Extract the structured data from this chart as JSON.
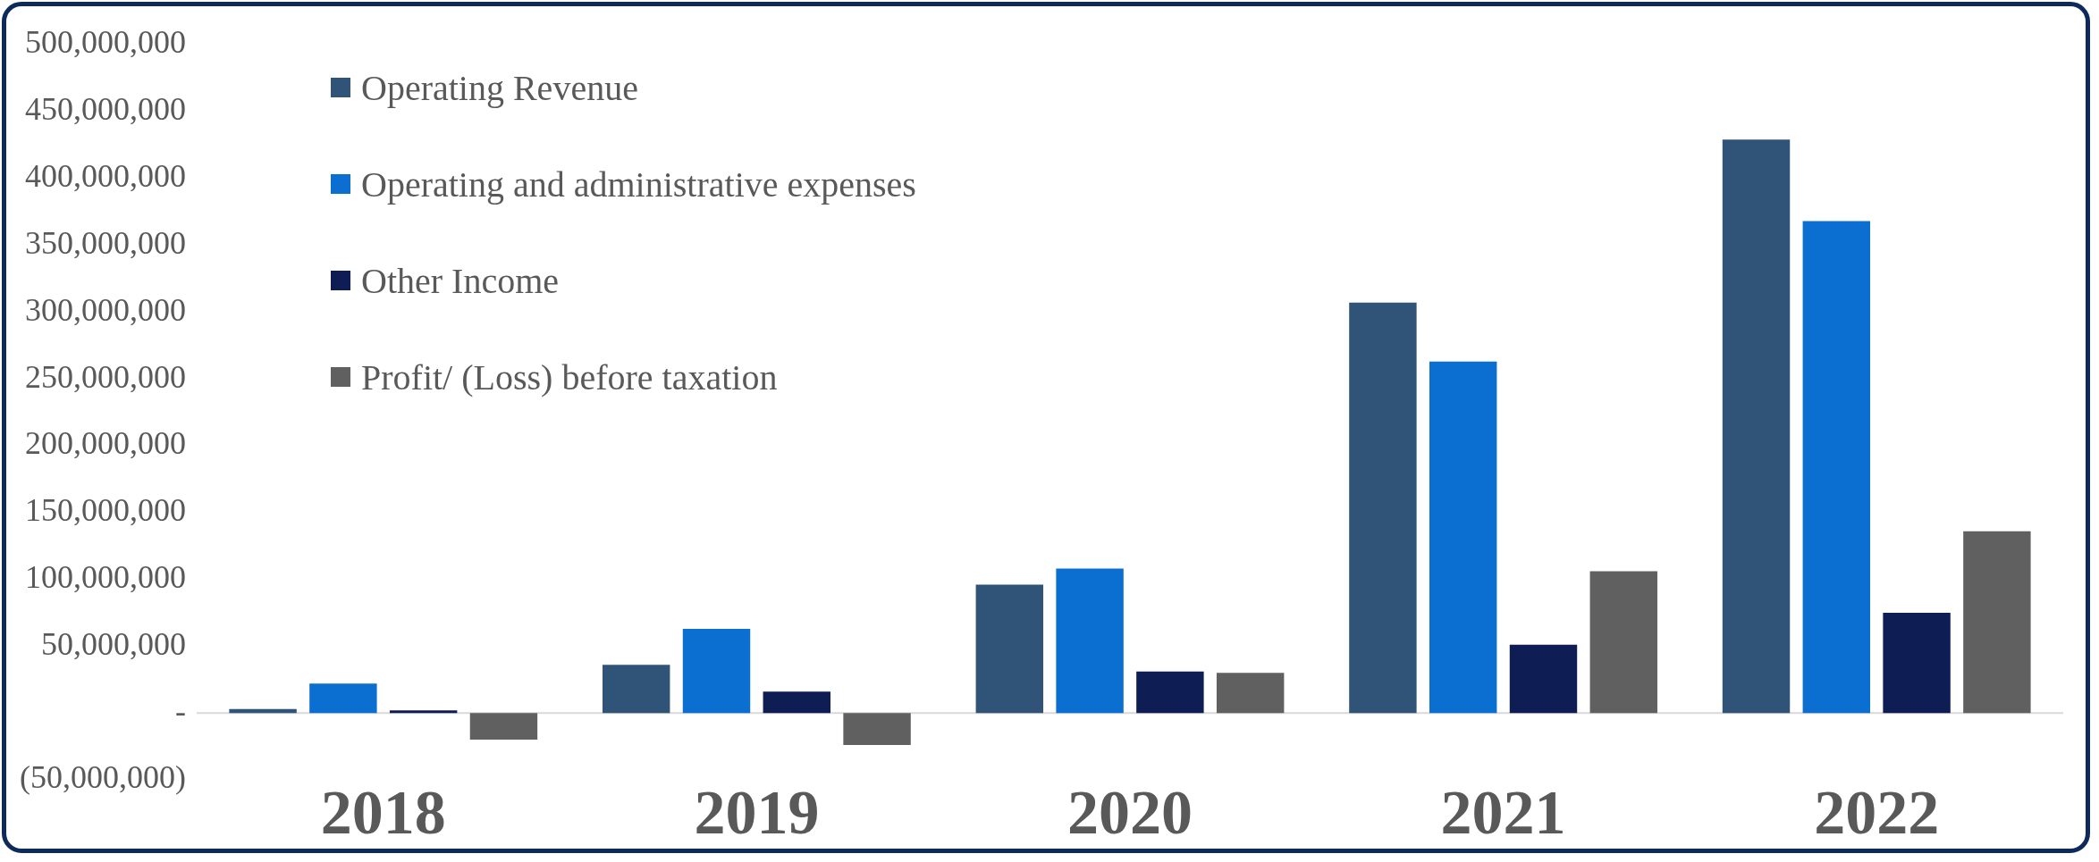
{
  "chart_data": {
    "type": "bar",
    "categories": [
      "2018",
      "2019",
      "2020",
      "2021",
      "2022"
    ],
    "series": [
      {
        "name": "Operating Revenue",
        "color": "#2f5478",
        "values": [
          3000000,
          36000000,
          96000000,
          307000000,
          429000000
        ]
      },
      {
        "name": "Operating and administrative expenses",
        "color": "#0b6fd2",
        "values": [
          22000000,
          63000000,
          108000000,
          263000000,
          368000000
        ]
      },
      {
        "name": "Other Income",
        "color": "#0f1d55",
        "values": [
          2000000,
          16000000,
          31000000,
          51000000,
          75000000
        ]
      },
      {
        "name": "Profit/ (Loss) before taxation",
        "color": "#606060",
        "values": [
          -20000000,
          -24000000,
          30000000,
          106000000,
          136000000
        ]
      }
    ],
    "ylim": [
      -50000000,
      500000000
    ],
    "yticks": [
      {
        "value": -50000000,
        "label": "(50,000,000)"
      },
      {
        "value": 0,
        "label": "-"
      },
      {
        "value": 50000000,
        "label": "50,000,000"
      },
      {
        "value": 100000000,
        "label": "100,000,000"
      },
      {
        "value": 150000000,
        "label": "150,000,000"
      },
      {
        "value": 200000000,
        "label": "200,000,000"
      },
      {
        "value": 250000000,
        "label": "250,000,000"
      },
      {
        "value": 300000000,
        "label": "300,000,000"
      },
      {
        "value": 350000000,
        "label": "350,000,000"
      },
      {
        "value": 400000000,
        "label": "400,000,000"
      },
      {
        "value": 450000000,
        "label": "450,000,000"
      },
      {
        "value": 500000000,
        "label": "500,000,000"
      }
    ],
    "grid": false,
    "legend": "top left"
  }
}
